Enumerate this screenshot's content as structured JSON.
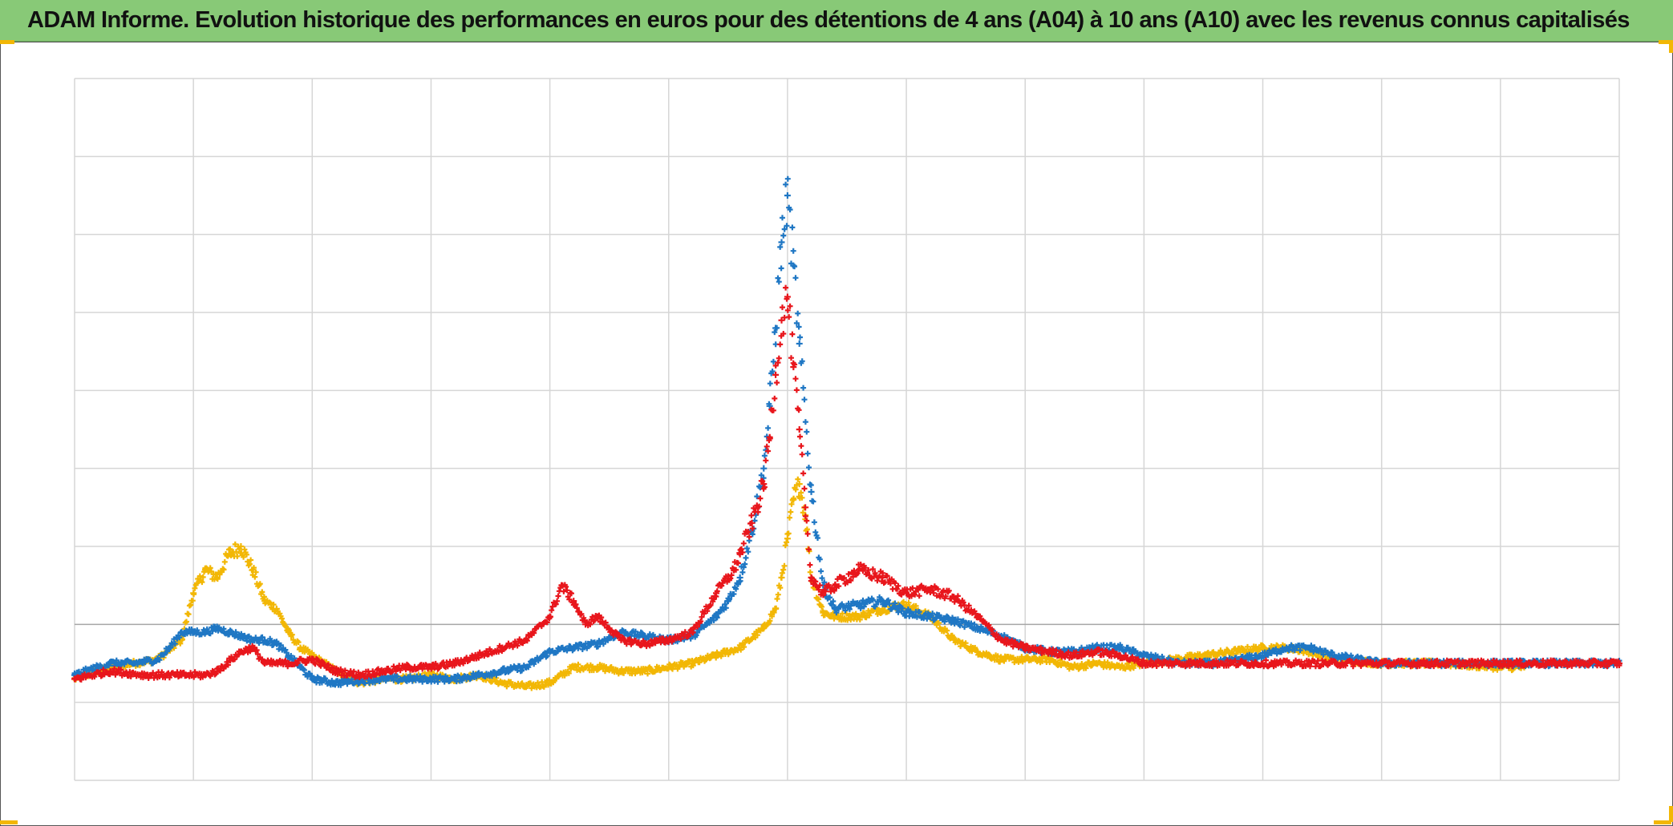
{
  "title": "ADAM Informe. Evolution historique des performances en euros pour des détentions de 4 ans (A04) à 10 ans (A10) avec les revenus connus capitalisés",
  "colors": {
    "header_bg": "#88c977",
    "grid": "#d6d6d6",
    "baseline": "#a6a6a6",
    "corner_markers": "#f2b705"
  },
  "chart_data": {
    "type": "scatter",
    "marker": "plus",
    "title": "ADAM Informe. Evolution historique des performances en euros pour des détentions de 4 ans (A04) à 10 ans (A10) avec les revenus connus capitalisés",
    "xlabel": "",
    "ylabel": "",
    "xlim": [
      0,
      13
    ],
    "ylim": [
      -2,
      7
    ],
    "baseline_y": 0,
    "grid": true,
    "legend": "none",
    "series": [
      {
        "color": "#f2b705",
        "x": [
          0,
          0.3,
          0.5,
          0.7,
          0.9,
          1.0,
          1.1,
          1.2,
          1.3,
          1.4,
          1.5,
          1.6,
          1.7,
          1.8,
          1.9,
          2.0,
          2.2,
          2.4,
          2.6,
          2.8,
          3.0,
          3.2,
          3.4,
          3.6,
          3.8,
          4.0,
          4.2,
          4.4,
          4.6,
          4.8,
          5.0,
          5.2,
          5.4,
          5.6,
          5.8,
          5.9,
          5.95,
          6.0,
          6.05,
          6.1,
          6.15,
          6.2,
          6.3,
          6.4,
          6.6,
          6.8,
          7.0,
          7.2,
          7.4,
          7.6,
          7.8,
          8.0,
          8.2,
          8.4,
          8.6,
          8.8,
          9.0,
          9.5,
          10.0,
          10.2,
          10.4,
          10.6,
          11.0,
          11.5,
          12.0,
          12.2
        ],
        "y": [
          -0.7,
          -0.55,
          -0.5,
          -0.45,
          -0.2,
          0.4,
          0.7,
          0.6,
          0.9,
          1.0,
          0.7,
          0.3,
          0.2,
          -0.1,
          -0.3,
          -0.4,
          -0.6,
          -0.75,
          -0.7,
          -0.7,
          -0.65,
          -0.7,
          -0.65,
          -0.75,
          -0.8,
          -0.75,
          -0.55,
          -0.55,
          -0.6,
          -0.6,
          -0.55,
          -0.5,
          -0.4,
          -0.3,
          -0.05,
          0.2,
          0.6,
          1.1,
          1.6,
          1.8,
          1.4,
          0.6,
          0.15,
          0.1,
          0.1,
          0.2,
          0.25,
          0.1,
          -0.2,
          -0.35,
          -0.45,
          -0.45,
          -0.45,
          -0.55,
          -0.5,
          -0.55,
          -0.5,
          -0.4,
          -0.3,
          -0.3,
          -0.35,
          -0.45,
          -0.5,
          -0.5,
          -0.55,
          -0.55
        ]
      },
      {
        "color": "#1f77c4",
        "x": [
          0,
          0.3,
          0.5,
          0.7,
          0.8,
          0.9,
          1.0,
          1.1,
          1.2,
          1.3,
          1.4,
          1.5,
          1.6,
          1.7,
          1.8,
          1.9,
          2.0,
          2.2,
          2.4,
          2.6,
          2.8,
          3.0,
          3.2,
          3.4,
          3.6,
          3.8,
          4.0,
          4.2,
          4.4,
          4.6,
          4.8,
          5.0,
          5.2,
          5.4,
          5.5,
          5.6,
          5.7,
          5.8,
          5.85,
          5.9,
          5.95,
          6.0,
          6.05,
          6.1,
          6.2,
          6.3,
          6.4,
          6.6,
          6.8,
          7.0,
          7.2,
          7.4,
          7.6,
          7.8,
          8.0,
          8.2,
          8.4,
          8.6,
          8.8,
          9.0,
          9.3,
          9.6,
          10.0,
          10.2,
          10.4,
          10.6,
          11.0,
          11.5,
          12.0,
          13.0
        ],
        "y": [
          -0.65,
          -0.5,
          -0.5,
          -0.45,
          -0.3,
          -0.1,
          -0.1,
          -0.1,
          -0.05,
          -0.1,
          -0.15,
          -0.2,
          -0.2,
          -0.25,
          -0.4,
          -0.55,
          -0.7,
          -0.75,
          -0.72,
          -0.7,
          -0.7,
          -0.7,
          -0.7,
          -0.65,
          -0.6,
          -0.55,
          -0.35,
          -0.3,
          -0.25,
          -0.1,
          -0.15,
          -0.2,
          -0.15,
          0.1,
          0.3,
          0.6,
          1.2,
          2.0,
          2.8,
          3.8,
          4.9,
          5.5,
          4.6,
          3.6,
          1.7,
          0.5,
          0.2,
          0.25,
          0.3,
          0.15,
          0.1,
          0.05,
          -0.05,
          -0.15,
          -0.3,
          -0.35,
          -0.35,
          -0.3,
          -0.3,
          -0.4,
          -0.5,
          -0.5,
          -0.4,
          -0.3,
          -0.3,
          -0.4,
          -0.5,
          -0.5,
          -0.5,
          -0.5
        ]
      },
      {
        "color": "#e8161c",
        "x": [
          0,
          0.3,
          0.6,
          0.9,
          1.1,
          1.2,
          1.4,
          1.5,
          1.6,
          1.8,
          2.0,
          2.2,
          2.4,
          2.6,
          2.8,
          3.0,
          3.2,
          3.4,
          3.6,
          3.8,
          4.0,
          4.1,
          4.2,
          4.3,
          4.4,
          4.5,
          4.6,
          4.8,
          5.0,
          5.2,
          5.4,
          5.55,
          5.6,
          5.7,
          5.8,
          5.85,
          5.9,
          5.95,
          6.0,
          6.05,
          6.1,
          6.15,
          6.2,
          6.3,
          6.4,
          6.6,
          6.8,
          7.0,
          7.2,
          7.4,
          7.6,
          7.8,
          8.0,
          8.2,
          8.4,
          8.6,
          8.8,
          9.0,
          9.3,
          9.6,
          10.0,
          11.0,
          12.0,
          13.0
        ],
        "y": [
          -0.7,
          -0.6,
          -0.65,
          -0.65,
          -0.65,
          -0.6,
          -0.35,
          -0.3,
          -0.5,
          -0.5,
          -0.45,
          -0.6,
          -0.65,
          -0.6,
          -0.55,
          -0.55,
          -0.5,
          -0.4,
          -0.3,
          -0.2,
          0.1,
          0.5,
          0.3,
          0.0,
          0.1,
          -0.05,
          -0.2,
          -0.25,
          -0.2,
          -0.1,
          0.4,
          0.7,
          0.9,
          1.3,
          1.8,
          2.4,
          3.2,
          3.9,
          4.2,
          3.3,
          2.5,
          1.5,
          0.6,
          0.4,
          0.5,
          0.7,
          0.6,
          0.4,
          0.45,
          0.35,
          0.1,
          -0.2,
          -0.3,
          -0.35,
          -0.4,
          -0.35,
          -0.4,
          -0.5,
          -0.5,
          -0.5,
          -0.5,
          -0.5,
          -0.5,
          -0.5
        ]
      }
    ]
  }
}
